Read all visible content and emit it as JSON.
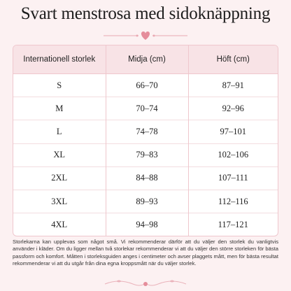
{
  "header": {
    "title": "Svart menstrosa med sidoknäppning"
  },
  "table": {
    "columns": [
      "Internationell storlek",
      "Midja (cm)",
      "Höft (cm)"
    ],
    "rows": [
      [
        "S",
        "66–70",
        "87–91"
      ],
      [
        "M",
        "70–74",
        "92–96"
      ],
      [
        "L",
        "74–78",
        "97–101"
      ],
      [
        "XL",
        "79–83",
        "102–106"
      ],
      [
        "2XL",
        "84–88",
        "107–111"
      ],
      [
        "3XL",
        "89–93",
        "112–116"
      ],
      [
        "4XL",
        "94–98",
        "117–121"
      ]
    ]
  },
  "footnote": "Storlekarna kan upplevas som något små. Vi rekommenderar därför att du väljer den storlek du vanligtvis använder i kläder. Om du ligger mellan två storlekar rekommenderar vi att du väljer den större storleken för bästa passform och komfort. Måtten i storleksguiden anges i centimeter och avser plaggets mått, men för bästa resultat rekommenderar vi att du utgår från dina egna kroppsmått när du väljer storlek."
}
